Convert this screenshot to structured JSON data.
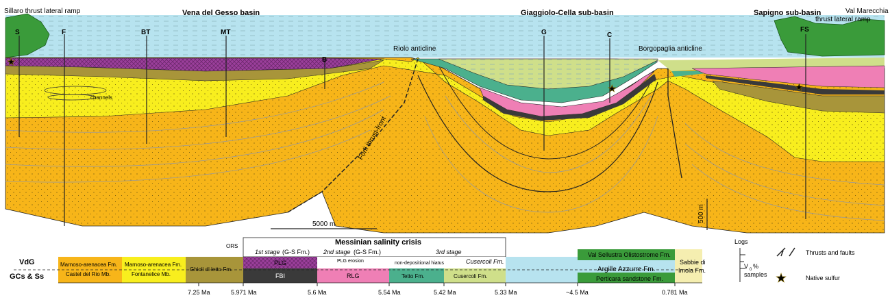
{
  "header": {
    "left_ramp": "Sillaro thrust lateral ramp",
    "basin_vdg": "Vena del Gesso basin",
    "basin_gc": "Giaggiolo-Cella sub-basin",
    "basin_ss": "Sapigno sub-basin",
    "right_ramp_1": "Val Marecchia",
    "right_ramp_2": "thrust lateral ramp"
  },
  "section": {
    "riolo": "Riolo anticline",
    "borgopaglia": "Borgopaglia anticline",
    "channels": "channels",
    "fault_label": "Forlì thrust-front"
  },
  "logs": [
    "S",
    "F",
    "BT",
    "MT",
    "B",
    "G",
    "C",
    "FS"
  ],
  "scale": {
    "horizontal": "5000 m",
    "vertical": "500 m"
  },
  "strat": {
    "vdg": "VdG",
    "gcss": "GCs & Ss",
    "ors": "ORS",
    "msc_title": "Messinian salinity crisis",
    "stage1": "1st stage",
    "stage1_fm": "(G-S Fm.)",
    "stage2": "2nd stage",
    "stage2_fm": "(G-S Fm.)",
    "stage3": "3rd stage",
    "ma1_top": "Marnoso-arenacea Fm.",
    "ma1_bot": "Castel del Rio Mb.",
    "ma2_top": "Marnoso-arenacea Fm.",
    "ma2_bot": "Fontanelice Mb.",
    "ghioli": "Ghioli di letto Fm.",
    "plg": "PLG",
    "fbi": "FBI",
    "plg_erosion": "PLG erosion",
    "rlg": "RLG",
    "hiatus": "non-depositional hiatus",
    "cusercoli_top": "Cusercoli Fm.",
    "tetto": "Tetto Fm.",
    "cusercoli_bot": "Cusercoli Fm.",
    "argille": "Argille Azzurre Fm.",
    "sellustra": "Val Sellustra Olistostrome Fm.",
    "perticara": "Perticara sandstone Fm.",
    "sabbie_1": "Sabbie di",
    "sabbie_2": "Imola Fm."
  },
  "ages": [
    "7.25 Ma",
    "5.971 Ma",
    "5.6 Ma",
    "5.54 Ma",
    "5.42 Ma",
    "5.33 Ma",
    "~4.5 Ma",
    "0.781 Ma"
  ],
  "legend": {
    "logs": "Logs",
    "v0": "V",
    "v0_sub": "0",
    "v0_pct": "%",
    "samples": "samples",
    "thrusts": "Thrusts and faults",
    "sulfur": "Native sulfur"
  },
  "colors": {
    "water": "#b7e3ef",
    "land": "#3a9b3a",
    "orange": "#f7b519",
    "yellow": "#f8ee1e",
    "purple": "#9b3f9b",
    "pink": "#ef7fb5",
    "teal": "#4bb08d",
    "lightgreen": "#cfdf8a",
    "olive": "#a8953a",
    "dark": "#3a3a3a"
  }
}
